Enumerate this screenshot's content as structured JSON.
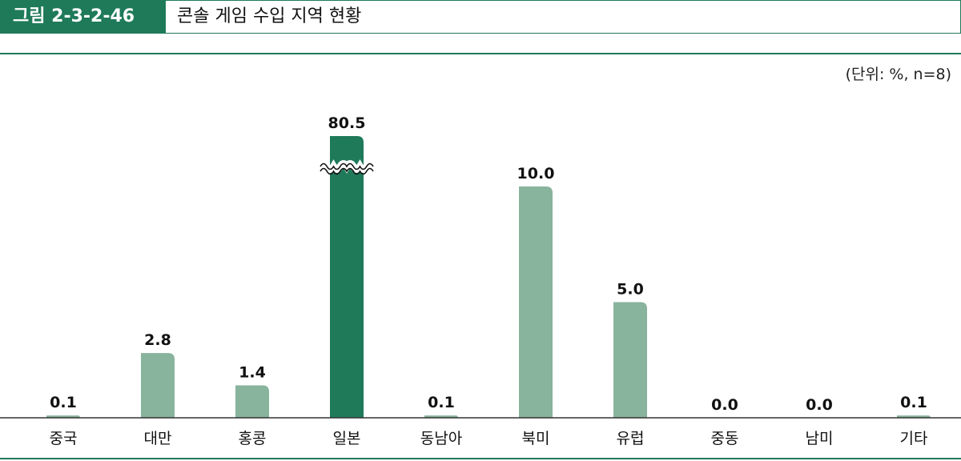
{
  "header": {
    "figure_number": "그림 2-3-2-46",
    "title": "콘솔 게임 수입 지역 현황"
  },
  "unit_note": "(단위: %, n=8)",
  "colors": {
    "accent": "#1f7a5a",
    "bar": "#88b39c",
    "bar_highlight": "#1f7a5a"
  },
  "chart_data": {
    "type": "bar",
    "title": "콘솔 게임 수입 지역 현황",
    "xlabel": "",
    "ylabel": "",
    "unit": "%",
    "categories": [
      "중국",
      "대만",
      "홍콩",
      "일본",
      "동남아",
      "북미",
      "유럽",
      "중동",
      "남미",
      "기타"
    ],
    "values": [
      0.1,
      2.8,
      1.4,
      80.5,
      0.1,
      10.0,
      5.0,
      0.0,
      0.0,
      0.1
    ],
    "value_labels": [
      "0.1",
      "2.8",
      "1.4",
      "80.5",
      "0.1",
      "10.0",
      "5.0",
      "0.0",
      "0.0",
      "0.1"
    ],
    "ylim": [
      0,
      12.5
    ],
    "axis_break_category": "일본",
    "highlight_category": "일본",
    "grid": false,
    "legend": "none"
  }
}
